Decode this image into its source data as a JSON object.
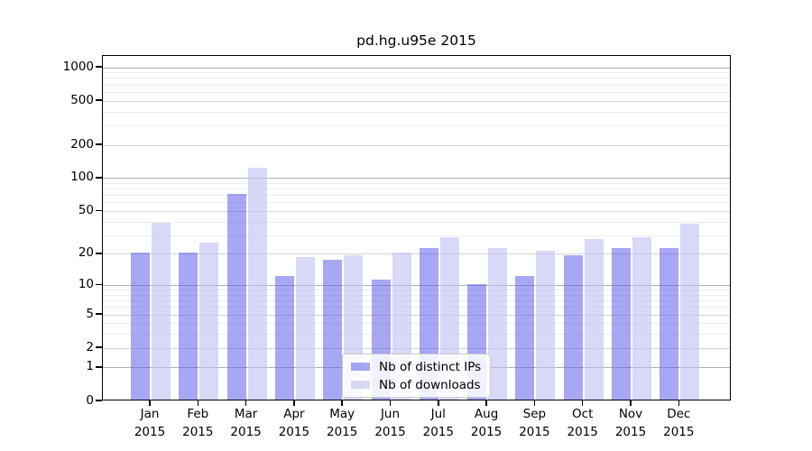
{
  "title": "pd.hg.u95e 2015",
  "colors": {
    "ips_bar": "rgba(95,95,235,0.55)",
    "downloads_bar": "rgba(190,190,242,0.6)",
    "grid_major": "#b0b0b0",
    "grid_mid": "#d6d6d6",
    "grid_minor": "#ececec",
    "axis": "#000000"
  },
  "legend": {
    "items": [
      {
        "label": "Nb of distinct IPs",
        "color_key": "ips_bar"
      },
      {
        "label": "Nb of downloads",
        "color_key": "downloads_bar"
      }
    ]
  },
  "y_axis": {
    "ticks": [
      {
        "label": "0",
        "value": 0
      },
      {
        "label": "1",
        "value": 1
      },
      {
        "label": "2",
        "value": 2
      },
      {
        "label": "5",
        "value": 5
      },
      {
        "label": "10",
        "value": 10
      },
      {
        "label": "20",
        "value": 20
      },
      {
        "label": "50",
        "value": 50
      },
      {
        "label": "100",
        "value": 100
      },
      {
        "label": "200",
        "value": 200
      },
      {
        "label": "500",
        "value": 500
      },
      {
        "label": "1000",
        "value": 1000
      }
    ],
    "minor_grid_values": [
      2,
      3,
      4,
      5,
      6,
      7,
      8,
      9,
      20,
      30,
      40,
      50,
      60,
      70,
      80,
      90,
      200,
      300,
      400,
      500,
      600,
      700,
      800,
      900
    ],
    "major_grid_values": [
      1,
      10,
      100,
      1000
    ],
    "mid_grid_values": [
      2,
      5,
      20,
      50,
      200,
      500
    ]
  },
  "x_axis": {
    "year": "2015",
    "months": [
      "Jan",
      "Feb",
      "Mar",
      "Apr",
      "May",
      "Jun",
      "Jul",
      "Aug",
      "Sep",
      "Oct",
      "Nov",
      "Dec"
    ]
  },
  "chart_data": {
    "type": "bar",
    "title": "pd.hg.u95e 2015",
    "scale": "log10(1+y)",
    "xlabel": "",
    "ylabel": "",
    "grid": true,
    "legend_position": "bottom-center",
    "categories": [
      "Jan 2015",
      "Feb 2015",
      "Mar 2015",
      "Apr 2015",
      "May 2015",
      "Jun 2015",
      "Jul 2015",
      "Aug 2015",
      "Sep 2015",
      "Oct 2015",
      "Nov 2015",
      "Dec 2015"
    ],
    "series": [
      {
        "name": "Nb of distinct IPs",
        "values": [
          20,
          20,
          70,
          12,
          17,
          11,
          22,
          10,
          12,
          19,
          22,
          22
        ]
      },
      {
        "name": "Nb of downloads",
        "values": [
          38,
          25,
          120,
          18,
          19,
          20,
          28,
          22,
          21,
          27,
          28,
          37
        ]
      }
    ],
    "y_tick_values": [
      0,
      1,
      2,
      5,
      10,
      20,
      50,
      100,
      200,
      500,
      1000
    ]
  }
}
